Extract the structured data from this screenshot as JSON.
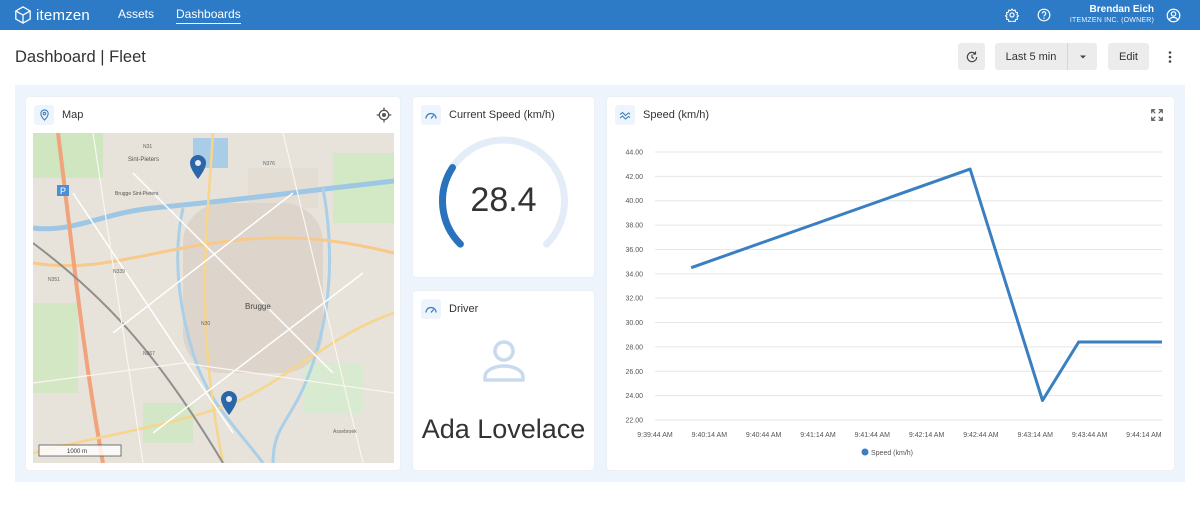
{
  "app": {
    "brand_name": "itemzen",
    "nav": [
      {
        "label": "Assets",
        "active": false
      },
      {
        "label": "Dashboards",
        "active": true
      }
    ],
    "user": {
      "name": "Brendan Eich",
      "org": "ITEMZEN INC. (OWNER)"
    },
    "colors": {
      "primary": "#2d7bc6",
      "accent": "#3a7fc1",
      "dashboard_bg": "#eef4fb"
    }
  },
  "page": {
    "title": "Dashboard | Fleet",
    "time_range": "Last 5 min",
    "edit_label": "Edit"
  },
  "map_widget": {
    "title": "Map",
    "scale_label": "1000 m",
    "place_labels": [
      "Brugge",
      "Sint-Pieters",
      "Brugge Sint-Pieters",
      "N31",
      "N376",
      "N339",
      "N351",
      "N30",
      "N367",
      "Assebroek"
    ]
  },
  "speed_widget": {
    "title": "Current Speed (km/h)",
    "value": "28.4",
    "gauge_fraction": 0.29
  },
  "driver_widget": {
    "title": "Driver",
    "name": "Ada Lovelace"
  },
  "chart_data": {
    "type": "line",
    "title": "Speed (km/h)",
    "xlabel": "",
    "ylabel": "",
    "x": [
      "9:39:44 AM",
      "9:40:14 AM",
      "9:40:44 AM",
      "9:41:14 AM",
      "9:41:44 AM",
      "9:42:14 AM",
      "9:42:44 AM",
      "9:43:14 AM",
      "9:43:44 AM",
      "9:44:14 AM"
    ],
    "y_ticks": [
      "22.00",
      "24.00",
      "26.00",
      "28.00",
      "30.00",
      "32.00",
      "34.00",
      "36.00",
      "38.00",
      "40.00",
      "42.00",
      "44.00"
    ],
    "ylim": [
      22,
      44
    ],
    "series": [
      {
        "name": "Speed (km/h)",
        "color": "#3a7fc1",
        "points": [
          {
            "t": 20,
            "v": 34.5
          },
          {
            "t": 174,
            "v": 42.6
          },
          {
            "t": 214,
            "v": 23.6
          },
          {
            "t": 234,
            "v": 28.4
          },
          {
            "t": 280,
            "v": 28.4
          }
        ]
      }
    ],
    "x_range_seconds": [
      0,
      280
    ],
    "legend": "bottom",
    "grid": true
  }
}
